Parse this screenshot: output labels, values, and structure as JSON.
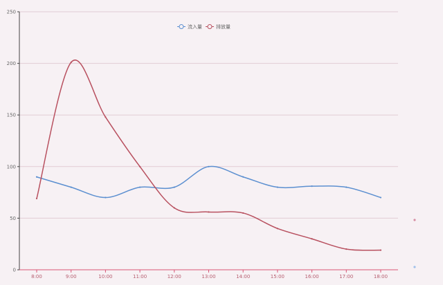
{
  "chart_data": {
    "type": "line",
    "title": "",
    "xlabel": "",
    "ylabel": "",
    "categories": [
      "8:00",
      "9:00",
      "10:00",
      "11:00",
      "12:00",
      "13:00",
      "14:00",
      "15:00",
      "16:00",
      "17:00",
      "18:00"
    ],
    "series": [
      {
        "name": "流入量",
        "color": "#5b8fd0",
        "values": [
          90,
          80,
          70,
          80,
          80,
          100,
          90,
          80,
          81,
          80,
          70
        ]
      },
      {
        "name": "排放量",
        "color": "#b8505f",
        "values": [
          69,
          201,
          148,
          100,
          60,
          56,
          55,
          40,
          30,
          20,
          19
        ]
      }
    ],
    "ylim": [
      0,
      250
    ],
    "y_ticks": [
      0,
      50,
      100,
      150,
      200,
      250
    ],
    "grid": true,
    "legend_position": "top-center"
  }
}
